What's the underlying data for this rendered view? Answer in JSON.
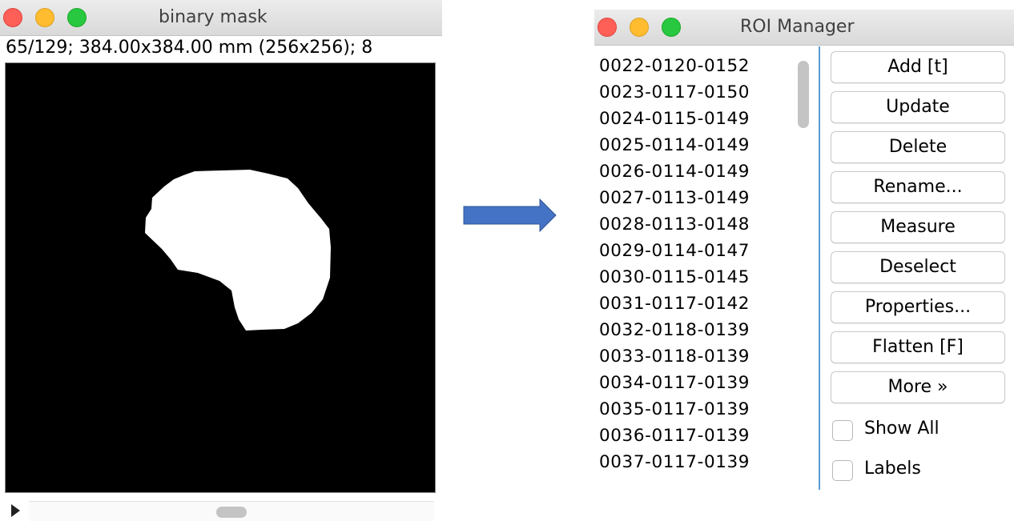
{
  "mask_window": {
    "title": "binary mask",
    "info": "65/129; 384.00x384.00 mm (256x256); 8"
  },
  "roi_window": {
    "title": "ROI Manager",
    "items": [
      "0022-0120-0152",
      "0023-0117-0150",
      "0024-0115-0149",
      "0025-0114-0149",
      "0026-0114-0149",
      "0027-0113-0149",
      "0028-0113-0148",
      "0029-0114-0147",
      "0030-0115-0145",
      "0031-0117-0142",
      "0032-0118-0139",
      "0033-0118-0139",
      "0034-0117-0139",
      "0035-0117-0139",
      "0036-0117-0139",
      "0037-0117-0139"
    ],
    "buttons": {
      "add": "Add [t]",
      "update": "Update",
      "delete": "Delete",
      "rename": "Rename...",
      "measure": "Measure",
      "deselect": "Deselect",
      "properties": "Properties...",
      "flatten": "Flatten [F]",
      "more": "More »"
    },
    "checkboxes": {
      "show_all": "Show All",
      "labels": "Labels"
    }
  },
  "colors": {
    "arrow": "#4472c4",
    "close": "#fe5f57",
    "minimize": "#febc2e",
    "zoom": "#28c840",
    "list_divider": "#5b9bd5"
  }
}
